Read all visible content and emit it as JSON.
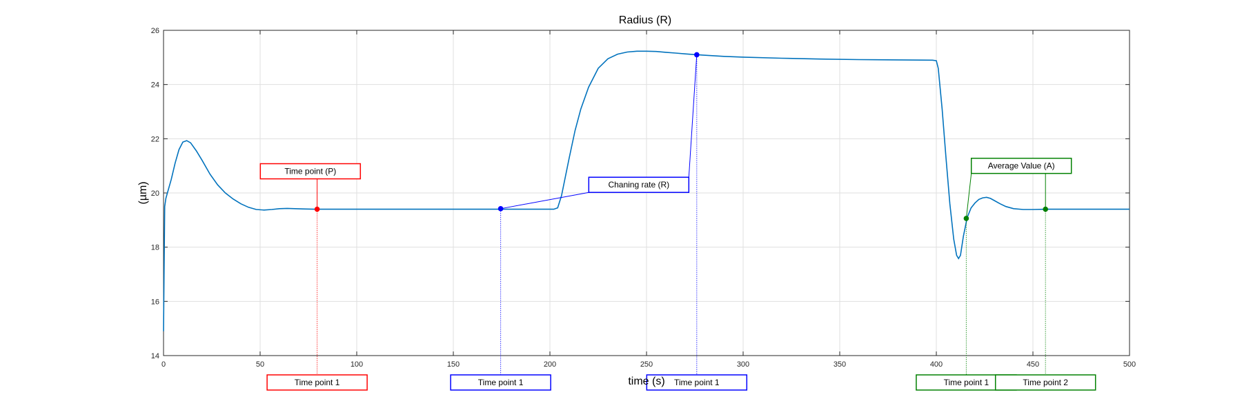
{
  "chart_data": {
    "type": "line",
    "title": "Radius (R)",
    "xlabel": "time (s)",
    "ylabel": "(µm)",
    "xlim": [
      0,
      500
    ],
    "ylim": [
      14,
      26
    ],
    "xticks": [
      0,
      50,
      100,
      150,
      200,
      250,
      300,
      350,
      400,
      450,
      500
    ],
    "yticks": [
      14,
      16,
      18,
      20,
      22,
      24,
      26
    ],
    "grid": true,
    "line_color": "#0072BD",
    "series": [
      {
        "values": [
          [
            0,
            14.9
          ],
          [
            0.6,
            19.5
          ],
          [
            1.2,
            19.8
          ],
          [
            2,
            20.0
          ],
          [
            4,
            20.5
          ],
          [
            6,
            21.1
          ],
          [
            8,
            21.6
          ],
          [
            10,
            21.88
          ],
          [
            12,
            21.93
          ],
          [
            14,
            21.85
          ],
          [
            17,
            21.55
          ],
          [
            20,
            21.2
          ],
          [
            24,
            20.7
          ],
          [
            28,
            20.3
          ],
          [
            32,
            20.0
          ],
          [
            36,
            19.78
          ],
          [
            40,
            19.6
          ],
          [
            44,
            19.47
          ],
          [
            48,
            19.39
          ],
          [
            52,
            19.37
          ],
          [
            56,
            19.39
          ],
          [
            60,
            19.42
          ],
          [
            64,
            19.43
          ],
          [
            68,
            19.42
          ],
          [
            72,
            19.41
          ],
          [
            78,
            19.4
          ],
          [
            100,
            19.4
          ],
          [
            150,
            19.4
          ],
          [
            174,
            19.4
          ],
          [
            202,
            19.4
          ],
          [
            204,
            19.45
          ],
          [
            206,
            19.9
          ],
          [
            208,
            20.6
          ],
          [
            210,
            21.3
          ],
          [
            213,
            22.3
          ],
          [
            216,
            23.1
          ],
          [
            220,
            23.9
          ],
          [
            225,
            24.6
          ],
          [
            230,
            24.95
          ],
          [
            235,
            25.12
          ],
          [
            240,
            25.2
          ],
          [
            245,
            25.23
          ],
          [
            250,
            25.23
          ],
          [
            255,
            25.22
          ],
          [
            260,
            25.19
          ],
          [
            265,
            25.16
          ],
          [
            270,
            25.13
          ],
          [
            276,
            25.1
          ],
          [
            290,
            25.04
          ],
          [
            300,
            25.01
          ],
          [
            320,
            24.97
          ],
          [
            340,
            24.94
          ],
          [
            360,
            24.92
          ],
          [
            380,
            24.91
          ],
          [
            398,
            24.9
          ],
          [
            400,
            24.88
          ],
          [
            401,
            24.6
          ],
          [
            403,
            23.1
          ],
          [
            405,
            21.3
          ],
          [
            407,
            19.6
          ],
          [
            409,
            18.3
          ],
          [
            410.5,
            17.7
          ],
          [
            411.5,
            17.58
          ],
          [
            412.5,
            17.7
          ],
          [
            414,
            18.4
          ],
          [
            416,
            19.1
          ],
          [
            418,
            19.45
          ],
          [
            420,
            19.63
          ],
          [
            422,
            19.76
          ],
          [
            424,
            19.82
          ],
          [
            426,
            19.84
          ],
          [
            428,
            19.8
          ],
          [
            430,
            19.72
          ],
          [
            433,
            19.6
          ],
          [
            436,
            19.5
          ],
          [
            440,
            19.42
          ],
          [
            445,
            19.39
          ],
          [
            450,
            19.39
          ],
          [
            457,
            19.4
          ],
          [
            470,
            19.4
          ],
          [
            485,
            19.4
          ],
          [
            500,
            19.4
          ]
        ]
      }
    ],
    "annotations": [
      {
        "label": "Time point (P)",
        "bottom_label": "Time point 1",
        "color": "#FF0000",
        "group": "red",
        "point": [
          79.5,
          19.4
        ],
        "label_pos": [
          76,
          20.8
        ],
        "bottom_x": 79.5
      },
      {
        "label": "Chaning rate (R)",
        "bottom_label": "Time point 1",
        "color": "#0000FF",
        "group": "blue",
        "point": [
          174.5,
          19.42
        ],
        "label_pos": [
          246,
          20.3
        ],
        "bottom_x": 174.5
      },
      {
        "label": "Chaning rate (R)",
        "bottom_label": "Time point 1",
        "color": "#0000FF",
        "group": "blue",
        "point": [
          276,
          25.1
        ],
        "label_pos": null,
        "bottom_x": 276
      },
      {
        "label": "Average Value (A)",
        "bottom_label": "Time point 1",
        "color": "#008000",
        "group": "green",
        "point": [
          415.5,
          19.06
        ],
        "label_pos": [
          444,
          21.0
        ],
        "bottom_x": 415.5
      },
      {
        "label": "Average Value (A)",
        "bottom_label": "Time point 2",
        "color": "#008000",
        "group": "green",
        "point": [
          456.5,
          19.4
        ],
        "label_pos": null,
        "bottom_x": 456.5
      }
    ]
  }
}
